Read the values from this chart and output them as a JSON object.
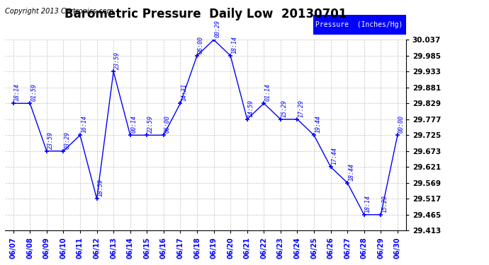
{
  "title": "Barometric Pressure  Daily Low  20130701",
  "copyright": "Copyright 2013 Cartronics.com",
  "legend_label": "Pressure  (Inches/Hg)",
  "x_labels": [
    "06/07",
    "06/08",
    "06/09",
    "06/10",
    "06/11",
    "06/12",
    "06/13",
    "06/14",
    "06/15",
    "06/16",
    "06/17",
    "06/18",
    "06/19",
    "06/20",
    "06/21",
    "06/22",
    "06/23",
    "06/24",
    "06/25",
    "06/26",
    "06/27",
    "06/28",
    "06/29",
    "06/30"
  ],
  "ylim_min": 29.413,
  "ylim_max": 30.037,
  "yticks": [
    29.413,
    29.465,
    29.517,
    29.569,
    29.621,
    29.673,
    29.725,
    29.777,
    29.829,
    29.881,
    29.933,
    29.985,
    30.037
  ],
  "line_color": "blue",
  "background_color": "#ffffff",
  "title_fontsize": 12,
  "copyright_fontsize": 7
}
